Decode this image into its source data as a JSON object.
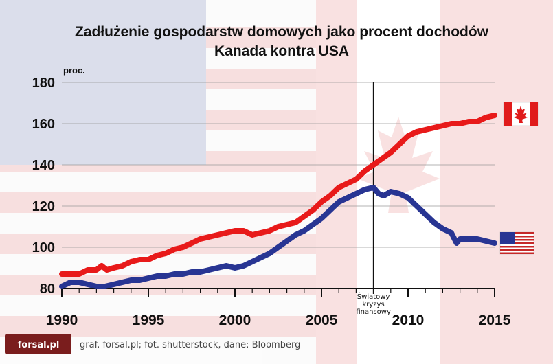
{
  "chart_data": {
    "type": "line",
    "title": "Zadłużenie gospodarstw domowych jako procent dochodów",
    "subtitle": "Kanada kontra USA",
    "ylabel": "proc.",
    "xlim": [
      1990,
      2015
    ],
    "ylim": [
      80,
      180
    ],
    "yticks": [
      "80",
      "100",
      "120",
      "140",
      "160",
      "180"
    ],
    "xticks": [
      "1990",
      "1995",
      "2000",
      "2005",
      "2010",
      "2015"
    ],
    "grid": true,
    "series": [
      {
        "name": "Kanada",
        "color": "#e81a1a",
        "flag": "canada-flag-icon",
        "points": [
          [
            1990.0,
            87
          ],
          [
            1991.0,
            87
          ],
          [
            1991.5,
            89
          ],
          [
            1992.0,
            89
          ],
          [
            1992.3,
            91
          ],
          [
            1992.6,
            89
          ],
          [
            1993.0,
            90
          ],
          [
            1993.5,
            91
          ],
          [
            1994.0,
            93
          ],
          [
            1994.5,
            94
          ],
          [
            1995.0,
            94
          ],
          [
            1995.5,
            96
          ],
          [
            1996.0,
            97
          ],
          [
            1996.5,
            99
          ],
          [
            1997.0,
            100
          ],
          [
            1997.5,
            102
          ],
          [
            1998.0,
            104
          ],
          [
            1998.5,
            105
          ],
          [
            1999.0,
            106
          ],
          [
            1999.5,
            107
          ],
          [
            2000.0,
            108
          ],
          [
            2000.5,
            108
          ],
          [
            2001.0,
            106
          ],
          [
            2001.5,
            107
          ],
          [
            2002.0,
            108
          ],
          [
            2002.5,
            110
          ],
          [
            2003.0,
            111
          ],
          [
            2003.5,
            112
          ],
          [
            2004.0,
            115
          ],
          [
            2004.5,
            118
          ],
          [
            2005.0,
            122
          ],
          [
            2005.5,
            125
          ],
          [
            2006.0,
            129
          ],
          [
            2006.5,
            131
          ],
          [
            2007.0,
            133
          ],
          [
            2007.5,
            137
          ],
          [
            2008.0,
            140
          ],
          [
            2008.5,
            143
          ],
          [
            2009.0,
            146
          ],
          [
            2009.5,
            150
          ],
          [
            2010.0,
            154
          ],
          [
            2010.5,
            156
          ],
          [
            2011.0,
            157
          ],
          [
            2011.5,
            158
          ],
          [
            2012.0,
            159
          ],
          [
            2012.5,
            160
          ],
          [
            2013.0,
            160
          ],
          [
            2013.5,
            161
          ],
          [
            2014.0,
            161
          ],
          [
            2014.5,
            163
          ],
          [
            2015.0,
            164
          ]
        ]
      },
      {
        "name": "USA",
        "color": "#283593",
        "flag": "usa-flag-icon",
        "points": [
          [
            1990.0,
            81
          ],
          [
            1990.5,
            83
          ],
          [
            1991.0,
            83
          ],
          [
            1991.5,
            82
          ],
          [
            1992.0,
            81
          ],
          [
            1992.5,
            81
          ],
          [
            1993.0,
            82
          ],
          [
            1993.5,
            83
          ],
          [
            1994.0,
            84
          ],
          [
            1994.5,
            84
          ],
          [
            1995.0,
            85
          ],
          [
            1995.5,
            86
          ],
          [
            1996.0,
            86
          ],
          [
            1996.5,
            87
          ],
          [
            1997.0,
            87
          ],
          [
            1997.5,
            88
          ],
          [
            1998.0,
            88
          ],
          [
            1998.5,
            89
          ],
          [
            1999.0,
            90
          ],
          [
            1999.5,
            91
          ],
          [
            2000.0,
            90
          ],
          [
            2000.5,
            91
          ],
          [
            2001.0,
            93
          ],
          [
            2001.5,
            95
          ],
          [
            2002.0,
            97
          ],
          [
            2002.5,
            100
          ],
          [
            2003.0,
            103
          ],
          [
            2003.5,
            106
          ],
          [
            2004.0,
            108
          ],
          [
            2004.5,
            111
          ],
          [
            2005.0,
            114
          ],
          [
            2005.5,
            118
          ],
          [
            2006.0,
            122
          ],
          [
            2006.5,
            124
          ],
          [
            2007.0,
            126
          ],
          [
            2007.5,
            128
          ],
          [
            2008.0,
            129
          ],
          [
            2008.3,
            126
          ],
          [
            2008.6,
            125
          ],
          [
            2009.0,
            127
          ],
          [
            2009.5,
            126
          ],
          [
            2010.0,
            124
          ],
          [
            2010.5,
            120
          ],
          [
            2011.0,
            116
          ],
          [
            2011.5,
            112
          ],
          [
            2012.0,
            109
          ],
          [
            2012.5,
            107
          ],
          [
            2012.8,
            102
          ],
          [
            2013.0,
            104
          ],
          [
            2013.5,
            104
          ],
          [
            2014.0,
            104
          ],
          [
            2014.5,
            103
          ],
          [
            2015.0,
            102
          ]
        ]
      }
    ],
    "vline": {
      "x": 2008.0,
      "label_lines": [
        "Światowy",
        "kryzys",
        "finansowy"
      ]
    }
  },
  "footer": {
    "logo_text": "forsal.pl",
    "credit": "graf. forsal.pl; fot. shutterstock, dane: Bloomberg"
  },
  "colors": {
    "background_flag_stripe": "#f3c9c9",
    "background_flag_field": "#c9cde0",
    "logo_bg": "#7a1d1d"
  }
}
